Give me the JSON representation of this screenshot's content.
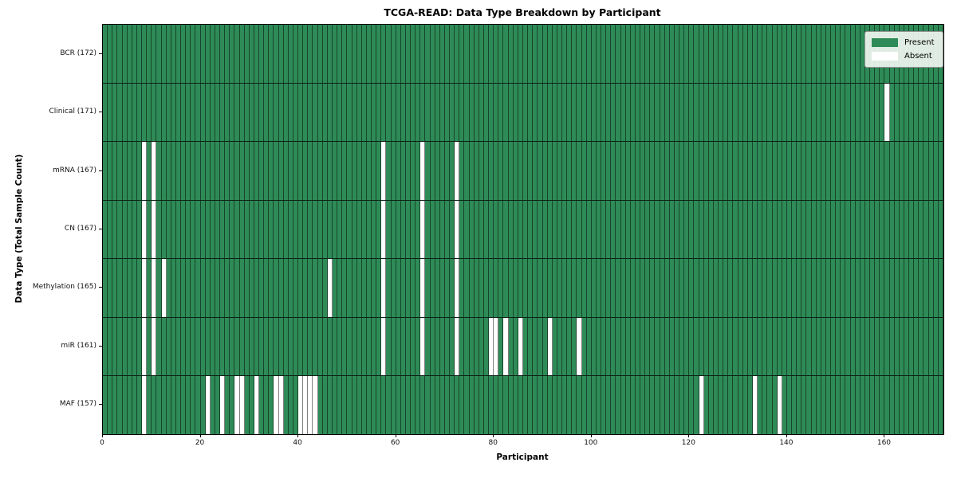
{
  "title": "TCGA-READ: Data Type Breakdown by Participant",
  "chart_data": {
    "type": "heatmap",
    "title": "TCGA-READ: Data Type Breakdown by Participant",
    "xlabel": "Participant",
    "ylabel": "Data Type (Total Sample Count)",
    "x_ticks": [
      0,
      20,
      40,
      60,
      80,
      100,
      120,
      140,
      160
    ],
    "x_range": [
      0,
      172
    ],
    "participants_total": 172,
    "grid": "cell borders on, dark row separators",
    "legend_position": "upper right",
    "legend": {
      "entries": [
        {
          "label": "Present",
          "color": "#2e8b57"
        },
        {
          "label": "Absent",
          "color": "#ffffff"
        }
      ]
    },
    "rows": [
      {
        "label": "BCR",
        "count": 172,
        "display": "BCR (172)",
        "absent": []
      },
      {
        "label": "Clinical",
        "count": 171,
        "display": "Clinical (171)",
        "absent": [
          160
        ]
      },
      {
        "label": "mRNA",
        "count": 167,
        "display": "mRNA (167)",
        "absent": [
          8,
          10,
          57,
          65,
          72
        ]
      },
      {
        "label": "CN",
        "count": 167,
        "display": "CN (167)",
        "absent": [
          8,
          10,
          57,
          65,
          72
        ]
      },
      {
        "label": "Methylation",
        "count": 165,
        "display": "Methylation (165)",
        "absent": [
          8,
          10,
          12,
          46,
          57,
          65,
          72
        ]
      },
      {
        "label": "miR",
        "count": 161,
        "display": "miR (161)",
        "absent": [
          8,
          10,
          57,
          65,
          72,
          79,
          80,
          82,
          85,
          91,
          97
        ]
      },
      {
        "label": "MAF",
        "count": 157,
        "display": "MAF (157)",
        "absent": [
          8,
          21,
          24,
          27,
          28,
          31,
          35,
          36,
          40,
          41,
          42,
          43,
          122,
          133,
          138
        ]
      }
    ],
    "colors": {
      "present": "#2e8b57",
      "absent": "#ffffff",
      "cell_border": "rgba(0,0,0,0.5)",
      "row_separator": "rgba(0,0,0,0.75)",
      "spine": "#000000",
      "background": "#ffffff"
    }
  }
}
